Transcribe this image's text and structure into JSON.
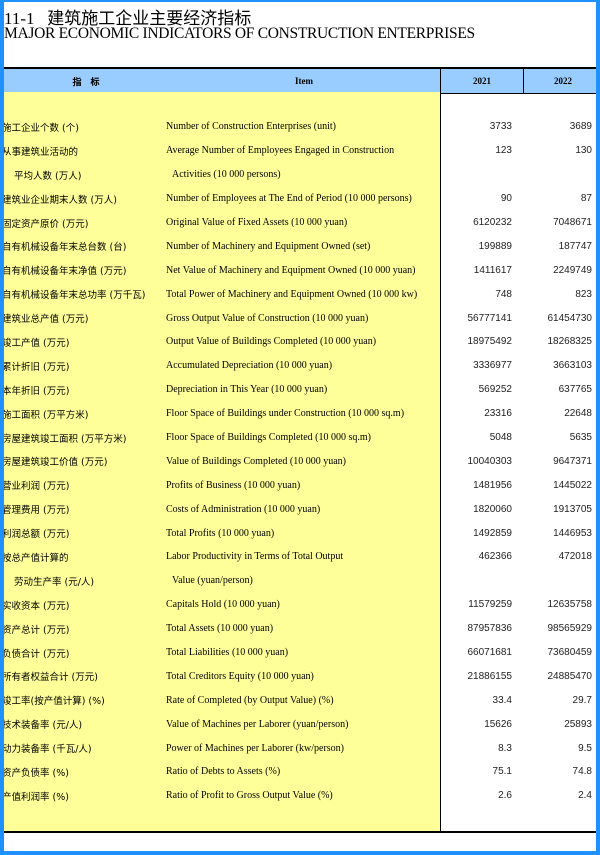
{
  "title_cn": "11-1   建筑施工企业主要经济指标",
  "title_en": "MAJOR ECONOMIC INDICATORS OF CONSTRUCTION ENTERPRISES",
  "header": {
    "cn": "指　标",
    "item": "Item",
    "y1": "2021",
    "y2": "2022"
  },
  "rows": [
    {
      "cn": "施工企业个数 (个)",
      "en": "Number of Construction Enterprises (unit)",
      "v2021": "3733",
      "v2022": "3689"
    },
    {
      "cn": "从事建筑业活动的",
      "en": "Average Number of Employees Engaged in Construction",
      "v2021": "123",
      "v2022": "130"
    },
    {
      "cn": "平均人数 (万人)",
      "en": "Activities (10 000 persons)",
      "sub": true
    },
    {
      "cn": "建筑业企业期末人数 (万人)",
      "en": "Number of Employees at The End of Period (10 000 persons)",
      "v2021": "90",
      "v2022": "87"
    },
    {
      "cn": "固定资产原价 (万元)",
      "en": "Original Value of Fixed Assets  (10 000 yuan)",
      "v2021": "6120232",
      "v2022": "7048671"
    },
    {
      "cn": "自有机械设备年末总台数 (台)",
      "en": "Number of Machinery and Equipment Owned (set)",
      "v2021": "199889",
      "v2022": "187747"
    },
    {
      "cn": "自有机械设备年末净值 (万元)",
      "en": "Net Value of Machinery and Equipment Owned (10 000  yuan)",
      "v2021": "1411617",
      "v2022": "2249749"
    },
    {
      "cn": "自有机械设备年末总功率 (万千瓦)",
      "en": "Total Power of Machinery and Equipment Owned (10 000  kw)",
      "v2021": "748",
      "v2022": "823"
    },
    {
      "cn": "建筑业总产值  (万元)",
      "en": "Gross Output Value of Construction (10 000 yuan)",
      "v2021": "56777141",
      "v2022": "61454730"
    },
    {
      "cn": "竣工产值  (万元)",
      "en": "Output Value of Buildings Completed (10 000 yuan)",
      "v2021": "18975492",
      "v2022": "18268325"
    },
    {
      "cn": "累计折旧  (万元)",
      "en": "Accumulated Depreciation (10 000 yuan)",
      "v2021": "3336977",
      "v2022": "3663103"
    },
    {
      "cn": "本年折旧  (万元)",
      "en": "Depreciation in This Year (10 000 yuan)",
      "v2021": "569252",
      "v2022": "637765"
    },
    {
      "cn": "施工面积  (万平方米)",
      "en": "Floor Space of Buildings under Construction (10 000 sq.m)",
      "v2021": "23316",
      "v2022": "22648"
    },
    {
      "cn": "房屋建筑竣工面积  (万平方米)",
      "en": "Floor Space of Buildings Completed (10 000 sq.m)",
      "v2021": "5048",
      "v2022": "5635"
    },
    {
      "cn": "房屋建筑竣工价值  (万元)",
      "en": "Value of Buildings Completed (10 000 yuan)",
      "v2021": "10040303",
      "v2022": "9647371"
    },
    {
      "cn": "营业利润  (万元)",
      "en": "Profits of Business (10 000 yuan)",
      "v2021": "1481956",
      "v2022": "1445022"
    },
    {
      "cn": "管理费用  (万元)",
      "en": "Costs of Administration (10 000 yuan)",
      "v2021": "1820060",
      "v2022": "1913705"
    },
    {
      "cn": "利润总额  (万元)",
      "en": "Total Profits  (10 000 yuan)",
      "v2021": "1492859",
      "v2022": "1446953"
    },
    {
      "cn": "按总产值计算的",
      "en": "Labor Productivity  in Terms of Total Output",
      "v2021": "462366",
      "v2022": "472018"
    },
    {
      "cn": "劳动生产率 (元/人)",
      "en": "Value (yuan/person)",
      "sub": true
    },
    {
      "cn": "实收资本   (万元)",
      "en": "Capitals Hold (10 000 yuan)",
      "v2021": "11579259",
      "v2022": "12635758"
    },
    {
      "cn": "资产总计   (万元)",
      "en": "Total Assets (10 000 yuan)",
      "v2021": "87957836",
      "v2022": "98565929"
    },
    {
      "cn": "负债合计   (万元)",
      "en": "Total Liabilities (10 000 yuan)",
      "v2021": "66071681",
      "v2022": "73680459"
    },
    {
      "cn": "所有者权益合计  (万元)",
      "en": "Total Creditors Equity (10 000 yuan)",
      "v2021": "21886155",
      "v2022": "24885470"
    },
    {
      "cn": "竣工率(按产值计算)  (%)",
      "en": "Rate of Completed (by Output Value) (%)",
      "v2021": "33.4",
      "v2022": "29.7"
    },
    {
      "cn": "技术装备率 (元/人)",
      "en": "Value of Machines per Laborer (yuan/person)",
      "v2021": "15626",
      "v2022": "25893"
    },
    {
      "cn": "动力装备率 (千瓦/人)",
      "en": "Power of Machines per Laborer (kw/person)",
      "v2021": "8.3",
      "v2022": "9.5"
    },
    {
      "cn": "资产负债率 (%)",
      "en": "Ratio of  Debts to Assets (%)",
      "v2021": "75.1",
      "v2022": "74.8"
    },
    {
      "cn": "产值利润率 (%)",
      "en": "Ratio of Profit to Gross Output Value (%)",
      "v2021": "2.6",
      "v2022": "2.4"
    }
  ]
}
